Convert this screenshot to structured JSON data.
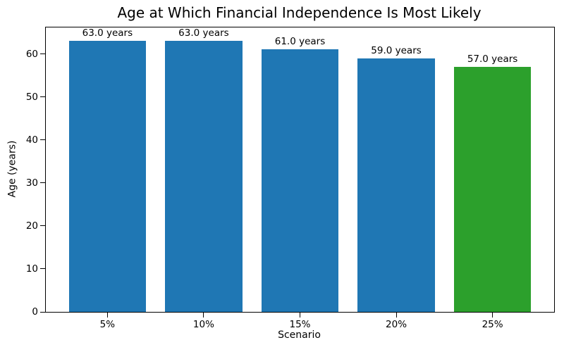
{
  "chart_data": {
    "type": "bar",
    "title": "Age at Which Financial Independence Is Most Likely",
    "xlabel": "Scenario",
    "ylabel": "Age (years)",
    "categories": [
      "5%",
      "10%",
      "15%",
      "20%",
      "25%"
    ],
    "values": [
      63.0,
      63.0,
      61.0,
      59.0,
      57.0
    ],
    "bar_labels": [
      "63.0 years",
      "63.0 years",
      "61.0 years",
      "59.0 years",
      "57.0 years"
    ],
    "bar_colors": [
      "#1f77b4",
      "#1f77b4",
      "#1f77b4",
      "#1f77b4",
      "#2ca02c"
    ],
    "ylim": [
      0,
      66.15
    ],
    "yticks": [
      0,
      10,
      20,
      30,
      40,
      50,
      60
    ],
    "grid": false,
    "legend_position": "none",
    "background_color": "#ffffff",
    "spine_color": "#000000"
  }
}
